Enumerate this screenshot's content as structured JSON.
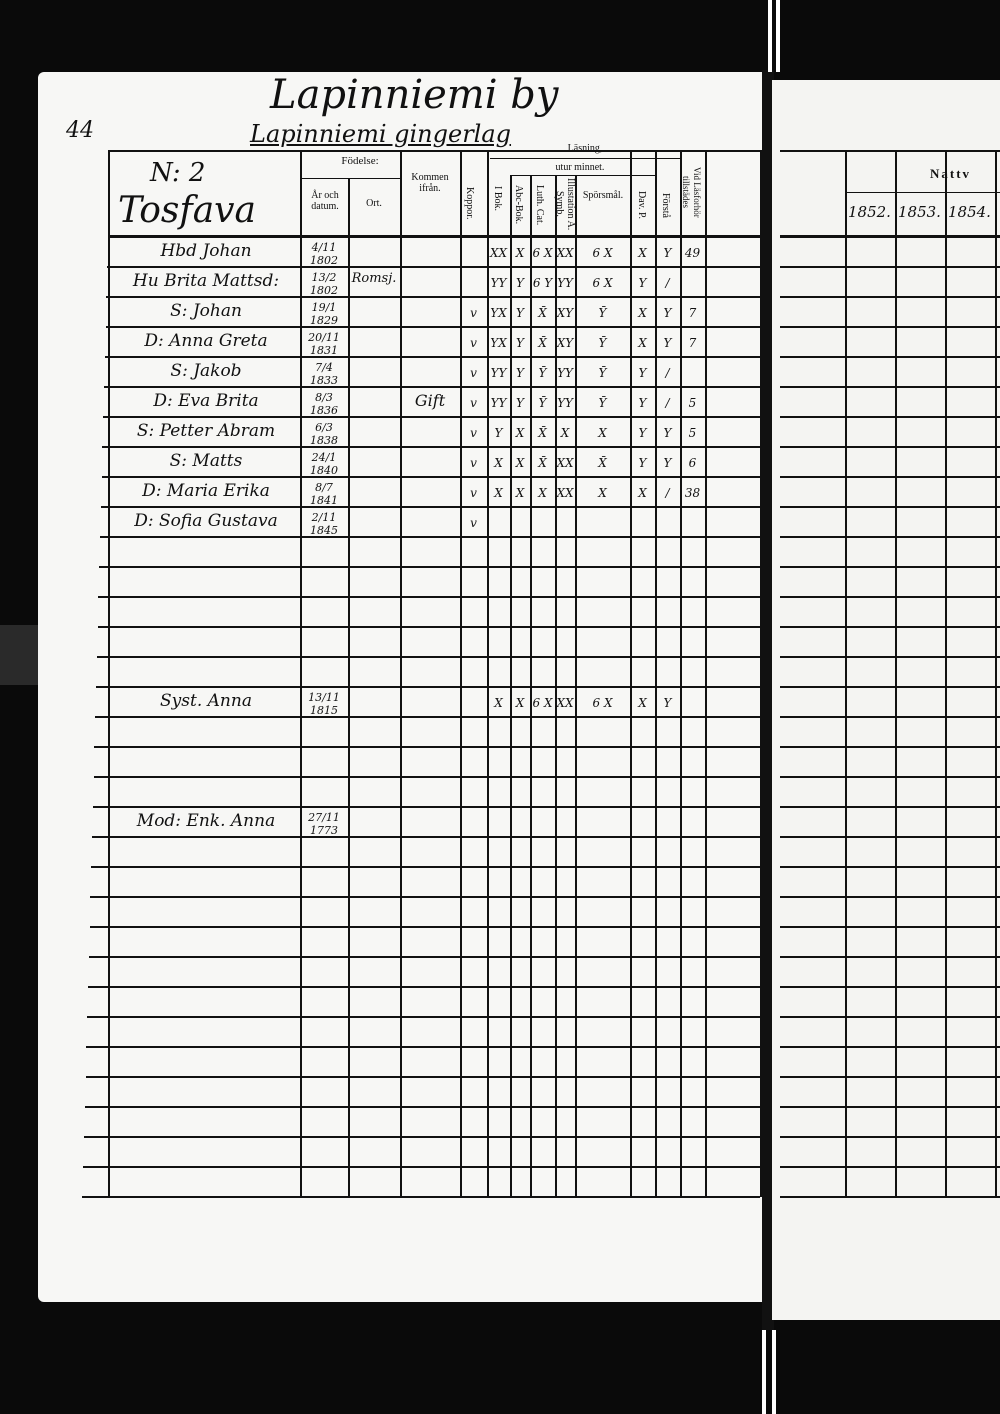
{
  "page_number": "44",
  "title": "Lapinniemi by",
  "subtitle": "Lapinniemi gingerlag",
  "household": {
    "number": "N: 2",
    "name": "Tosfava"
  },
  "headers": {
    "fodelse": "Födelse:",
    "ar_datum": "År och datum.",
    "ort": "Ort.",
    "kommen": "Kommen ifrån.",
    "koppor": "Koppor.",
    "lasning": "Läsning,",
    "utur_minnet": "utur minnet.",
    "i_bok": "I Bok.",
    "abc_bok": "Abc-Bok.",
    "luth_cat": "Luth. Cat.",
    "symb": "Illustation A. Symb.",
    "sporsmal": "Spörsmål.",
    "dav_p": "Dav. P.",
    "forstand": "Förstå",
    "vid_lasforhor": "Vid Läsforhör tillstädes"
  },
  "rows": [
    {
      "row": 0,
      "name": "Hbd Johan",
      "date": "4/11 1802",
      "ort": "",
      "kommen": "",
      "koppor": "",
      "marks": [
        "XX",
        "X",
        "6 X",
        "XX",
        "6 X",
        "X",
        "Y"
      ],
      "vid": "49"
    },
    {
      "row": 1,
      "name": "Hu Brita Mattsd:",
      "date": "13/2 1802",
      "ort": "Romsj.",
      "kommen": "",
      "koppor": "",
      "marks": [
        "YY",
        "Y",
        "6 Y",
        "YY",
        "6 X",
        "Y",
        "/"
      ],
      "vid": ""
    },
    {
      "row": 2,
      "name": "S: Johan",
      "date": "19/1 1829",
      "ort": "",
      "kommen": "",
      "koppor": "v",
      "marks": [
        "YX",
        "Y",
        "X̄",
        "XY",
        "Ȳ",
        "X",
        "Y"
      ],
      "vid": "7"
    },
    {
      "row": 3,
      "name": "D: Anna Greta",
      "date": "20/11 1831",
      "ort": "",
      "kommen": "",
      "koppor": "v",
      "marks": [
        "YX",
        "Y",
        "X̄",
        "XY",
        "Ȳ",
        "X",
        "Y"
      ],
      "vid": "7"
    },
    {
      "row": 4,
      "name": "S: Jakob",
      "date": "7/4 1833",
      "ort": "",
      "kommen": "",
      "koppor": "v",
      "marks": [
        "YY",
        "Y",
        "Ȳ",
        "YY",
        "Ȳ",
        "Y",
        "/"
      ],
      "vid": ""
    },
    {
      "row": 5,
      "name": "D: Eva Brita",
      "date": "8/3 1836",
      "ort": "",
      "kommen": "Gift",
      "koppor": "v",
      "marks": [
        "YY",
        "Y",
        "Ȳ",
        "YY",
        "Ȳ",
        "Y",
        "/"
      ],
      "vid": "5"
    },
    {
      "row": 6,
      "name": "S: Petter Abram",
      "date": "6/3 1838",
      "ort": "",
      "kommen": "",
      "koppor": "v",
      "marks": [
        "Y",
        "X",
        "X̄",
        "X",
        "X",
        "Y",
        "Y"
      ],
      "vid": "5"
    },
    {
      "row": 7,
      "name": "S: Matts",
      "date": "24/1 1840",
      "ort": "",
      "kommen": "",
      "koppor": "v",
      "marks": [
        "X",
        "X",
        "X̄",
        "XX",
        "X̄",
        "Y",
        "Y"
      ],
      "vid": "6"
    },
    {
      "row": 8,
      "name": "D: Maria Erika",
      "date": "8/7 1841",
      "ort": "",
      "kommen": "",
      "koppor": "v",
      "marks": [
        "X",
        "X",
        "X",
        "XX",
        "X",
        "X",
        "/"
      ],
      "vid": "38"
    },
    {
      "row": 9,
      "name": "D: Sofia Gustava",
      "date": "2/11 1845",
      "ort": "",
      "kommen": "",
      "koppor": "v",
      "marks": [
        "",
        "",
        "",
        "",
        "",
        "",
        ""
      ],
      "vid": ""
    },
    {
      "row": 15,
      "name": "Syst. Anna",
      "date": "13/11 1815",
      "ort": "",
      "kommen": "",
      "koppor": "",
      "marks": [
        "X",
        "X",
        "6 X",
        "XX",
        "6 X",
        "X",
        "Y"
      ],
      "vid": ""
    },
    {
      "row": 19,
      "name": "Mod: Enk. Anna",
      "date": "27/11 1773",
      "ort": "",
      "kommen": "",
      "koppor": "",
      "marks": [
        "",
        "",
        "",
        "",
        "",
        "",
        ""
      ],
      "vid": ""
    }
  ],
  "right_page": {
    "header": "Nattv",
    "years": [
      "1852.",
      "1853.",
      "1854."
    ]
  }
}
